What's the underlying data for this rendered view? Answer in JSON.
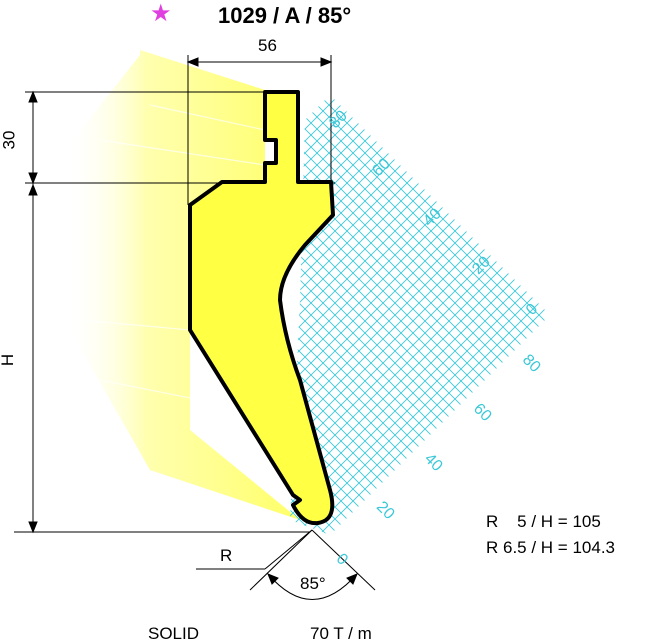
{
  "header": {
    "star_icon": "star-icon",
    "star_color": "#e040e0",
    "title": "1029 / A / 85°"
  },
  "dimensions": {
    "width_label": "56",
    "upper_height_label": "30",
    "height_label": "H",
    "radius_label": "R",
    "angle_label": "85°"
  },
  "grid": {
    "color": "#3cc8d8",
    "upper_labels": [
      "80",
      "60",
      "40",
      "20",
      "0"
    ],
    "lower_labels": [
      "80",
      "60",
      "40",
      "20",
      "0"
    ]
  },
  "specs": {
    "line1": "R    5 / H = 105",
    "line2": "R 6.5 / H = 104.3"
  },
  "footer": {
    "type": "SOLID",
    "capacity": "70 T / m"
  },
  "colors": {
    "tool_fill": "#ffff44",
    "shadow": "#ffffa8"
  }
}
